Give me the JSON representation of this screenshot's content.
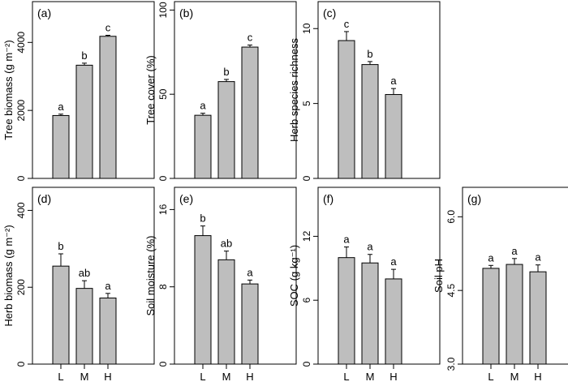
{
  "chart_data": [
    {
      "type": "bar",
      "panel_label": "(a)",
      "ylabel": "Tree biomass (g m⁻²)",
      "ylim": [
        0,
        5200
      ],
      "yticks": [
        0,
        2000,
        4000
      ],
      "categories": [
        "L",
        "M",
        "H"
      ],
      "values": [
        1850,
        3330,
        4180
      ],
      "errors": [
        40,
        60,
        30
      ],
      "letters": [
        "a",
        "b",
        "c"
      ],
      "show_x_tick_labels": false,
      "bar_color": "#bebebe"
    },
    {
      "type": "bar",
      "panel_label": "(b)",
      "ylabel": "Tree cover (%)",
      "ylim": [
        0,
        105
      ],
      "yticks": [
        0,
        50,
        100
      ],
      "categories": [
        "L",
        "M",
        "H"
      ],
      "values": [
        37.5,
        57.5,
        78
      ],
      "errors": [
        1.2,
        1.3,
        1.2
      ],
      "letters": [
        "a",
        "b",
        "c"
      ],
      "show_x_tick_labels": false,
      "bar_color": "#bebebe"
    },
    {
      "type": "bar",
      "panel_label": "(c)",
      "ylabel": "Herb species richness",
      "ylim": [
        0,
        11.8
      ],
      "yticks": [
        0,
        5,
        10
      ],
      "categories": [
        "L",
        "M",
        "H"
      ],
      "values": [
        9.2,
        7.6,
        5.6
      ],
      "errors": [
        0.6,
        0.2,
        0.4
      ],
      "letters": [
        "c",
        "b",
        "a"
      ],
      "show_x_tick_labels": false,
      "bar_color": "#bebebe"
    },
    {
      "type": "bar",
      "panel_label": "(d)",
      "ylabel": "Herb biomass (g m⁻²)",
      "ylim": [
        0,
        460
      ],
      "yticks": [
        0,
        200,
        400
      ],
      "categories": [
        "L",
        "M",
        "H"
      ],
      "values": [
        255,
        197,
        172
      ],
      "errors": [
        32,
        20,
        12
      ],
      "letters": [
        "b",
        "ab",
        "a"
      ],
      "show_x_tick_labels": true,
      "bar_color": "#bebebe"
    },
    {
      "type": "bar",
      "panel_label": "(e)",
      "ylabel": "Soil moisture (%)",
      "ylim": [
        0,
        18.3
      ],
      "yticks": [
        0,
        8,
        16
      ],
      "categories": [
        "L",
        "M",
        "H"
      ],
      "values": [
        13.3,
        10.8,
        8.3
      ],
      "errors": [
        1.0,
        0.9,
        0.4
      ],
      "letters": [
        "b",
        "ab",
        "a"
      ],
      "show_x_tick_labels": true,
      "bar_color": "#bebebe"
    },
    {
      "type": "bar",
      "panel_label": "(f)",
      "ylabel": "SOC (g kg⁻¹)",
      "ylim": [
        0,
        16.6
      ],
      "yticks": [
        0,
        6,
        12
      ],
      "categories": [
        "L",
        "M",
        "H"
      ],
      "values": [
        10.0,
        9.5,
        8.0
      ],
      "errors": [
        1.0,
        0.8,
        0.9
      ],
      "letters": [
        "a",
        "a",
        "a"
      ],
      "show_x_tick_labels": true,
      "bar_color": "#bebebe"
    },
    {
      "type": "bar",
      "panel_label": "(g)",
      "ylabel": "Soil pH",
      "ylim": [
        3.0,
        6.6
      ],
      "yticks": [
        3.0,
        4.5,
        6.0
      ],
      "ytick_labels": [
        "3.0",
        "4.5",
        "6.0"
      ],
      "categories": [
        "L",
        "M",
        "H"
      ],
      "values": [
        4.95,
        5.03,
        4.88
      ],
      "errors": [
        0.06,
        0.12,
        0.14
      ],
      "letters": [
        "a",
        "a",
        "a"
      ],
      "show_x_tick_labels": true,
      "bar_color": "#bebebe"
    }
  ]
}
